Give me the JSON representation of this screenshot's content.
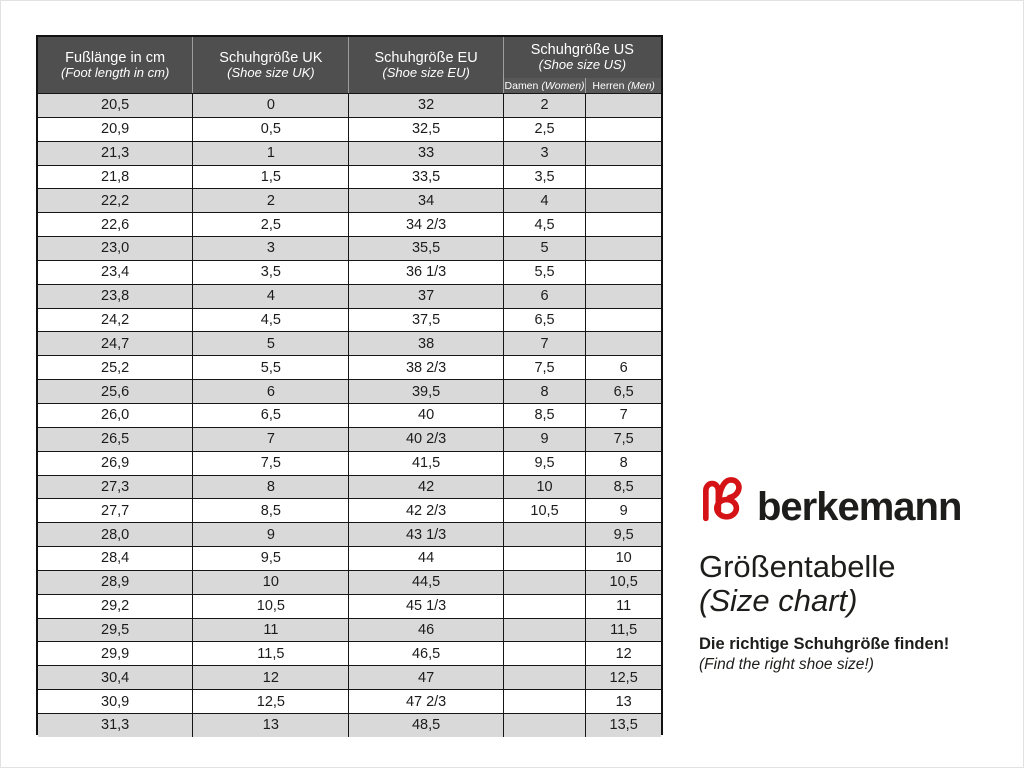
{
  "colors": {
    "accent_red": "#d51317",
    "header_bg": "#4f4f50",
    "row_stripe": "#d9d9d9",
    "border": "#161616"
  },
  "brand": {
    "wordmark": "berkemann",
    "logo_icon": "berkemann-heart-b-logo"
  },
  "titles": {
    "heading_de": "Größentabelle",
    "heading_en": "(Size chart)",
    "tagline_de": "Die richtige Schuhgröße finden!",
    "tagline_en": "(Find the right shoe size!)"
  },
  "table": {
    "columns": [
      {
        "label": "Fußlänge in cm",
        "sublabel": "(Foot length in cm)"
      },
      {
        "label": "Schuhgröße UK",
        "sublabel": "(Shoe size UK)"
      },
      {
        "label": "Schuhgröße EU",
        "sublabel": "(Shoe size EU)"
      },
      {
        "label": "Schuhgröße US",
        "sublabel": "(Shoe size US)",
        "subcolumns": [
          {
            "label": "Damen",
            "note": "(Women)"
          },
          {
            "label": "Herren",
            "note": "(Men)"
          }
        ]
      }
    ],
    "rows": [
      [
        "20,5",
        "0",
        "32",
        "2",
        ""
      ],
      [
        "20,9",
        "0,5",
        "32,5",
        "2,5",
        ""
      ],
      [
        "21,3",
        "1",
        "33",
        "3",
        ""
      ],
      [
        "21,8",
        "1,5",
        "33,5",
        "3,5",
        ""
      ],
      [
        "22,2",
        "2",
        "34",
        "4",
        ""
      ],
      [
        "22,6",
        "2,5",
        "34 2/3",
        "4,5",
        ""
      ],
      [
        "23,0",
        "3",
        "35,5",
        "5",
        ""
      ],
      [
        "23,4",
        "3,5",
        "36 1/3",
        "5,5",
        ""
      ],
      [
        "23,8",
        "4",
        "37",
        "6",
        ""
      ],
      [
        "24,2",
        "4,5",
        "37,5",
        "6,5",
        ""
      ],
      [
        "24,7",
        "5",
        "38",
        "7",
        ""
      ],
      [
        "25,2",
        "5,5",
        "38 2/3",
        "7,5",
        "6"
      ],
      [
        "25,6",
        "6",
        "39,5",
        "8",
        "6,5"
      ],
      [
        "26,0",
        "6,5",
        "40",
        "8,5",
        "7"
      ],
      [
        "26,5",
        "7",
        "40 2/3",
        "9",
        "7,5"
      ],
      [
        "26,9",
        "7,5",
        "41,5",
        "9,5",
        "8"
      ],
      [
        "27,3",
        "8",
        "42",
        "10",
        "8,5"
      ],
      [
        "27,7",
        "8,5",
        "42 2/3",
        "10,5",
        "9"
      ],
      [
        "28,0",
        "9",
        "43 1/3",
        "",
        "9,5"
      ],
      [
        "28,4",
        "9,5",
        "44",
        "",
        "10"
      ],
      [
        "28,9",
        "10",
        "44,5",
        "",
        "10,5"
      ],
      [
        "29,2",
        "10,5",
        "45 1/3",
        "",
        "11"
      ],
      [
        "29,5",
        "11",
        "46",
        "",
        "11,5"
      ],
      [
        "29,9",
        "11,5",
        "46,5",
        "",
        "12"
      ],
      [
        "30,4",
        "12",
        "47",
        "",
        "12,5"
      ],
      [
        "30,9",
        "12,5",
        "47 2/3",
        "",
        "13"
      ],
      [
        "31,3",
        "13",
        "48,5",
        "",
        "13,5"
      ]
    ]
  }
}
